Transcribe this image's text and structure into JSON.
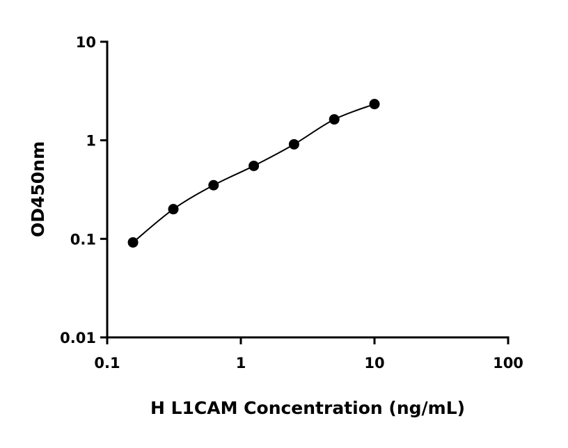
{
  "chart_data": {
    "type": "scatter",
    "title": "",
    "xlabel": "H L1CAM Concentration (ng/mL)",
    "ylabel": "OD450nm",
    "x_scale": "log",
    "y_scale": "log",
    "xlim": [
      0.1,
      100
    ],
    "ylim": [
      0.01,
      10
    ],
    "x_ticks": [
      "0.1",
      "1",
      "10",
      "100"
    ],
    "y_ticks": [
      "0.01",
      "0.1",
      "1",
      "10"
    ],
    "grid": false,
    "fit_curve": true,
    "color": "#000000",
    "series": [
      {
        "x": [
          0.156,
          0.3125,
          0.625,
          1.25,
          2.5,
          5,
          10
        ],
        "y": [
          0.092,
          0.2,
          0.35,
          0.55,
          0.91,
          1.63,
          2.33
        ]
      }
    ]
  }
}
